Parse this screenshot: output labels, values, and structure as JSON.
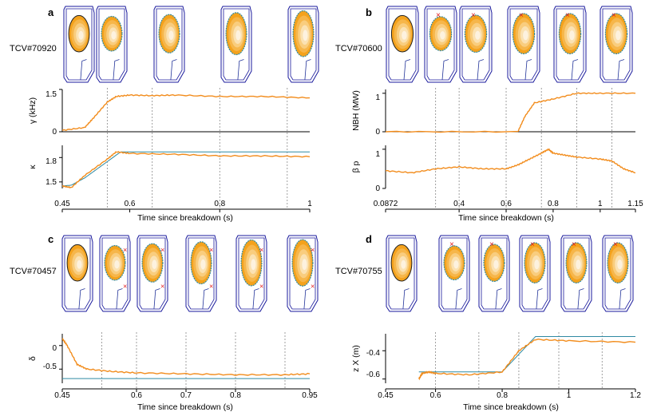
{
  "colors": {
    "orange": "#f28c1c",
    "teal": "#2f8aa3",
    "vessel": "#1a1a9c",
    "coil": "#223399",
    "dashed": "#888888",
    "xpoint": "#e0191b"
  },
  "panels": [
    {
      "letter": "a",
      "shot": "TCV#70920",
      "xlabel": "Time since breakdown (s)"
    },
    {
      "letter": "b",
      "shot": "TCV#70600",
      "xlabel": "Time since breakdown (s)"
    },
    {
      "letter": "c",
      "shot": "TCV#70457",
      "xlabel": "Time since breakdown (s)"
    },
    {
      "letter": "d",
      "shot": "TCV#70755",
      "xlabel": "Time since breakdown (s)"
    }
  ],
  "chart_data": [
    {
      "panel": "a",
      "type": "line",
      "x_ticks": [
        "0.45",
        "0.6",
        "0.8",
        "1"
      ],
      "xlim": [
        0.45,
        1.0
      ],
      "snapshot_times": [
        0.45,
        0.55,
        0.65,
        0.8,
        0.95
      ],
      "subplots": [
        {
          "ylabel": "γ (kHz)",
          "y_ticks": [
            "1.5",
            "0"
          ],
          "ylim": [
            0,
            1.5
          ],
          "series": [
            {
              "x": [
                0.45,
                0.5,
                0.52,
                0.55,
                0.57,
                0.6,
                0.65,
                0.7,
                0.8,
                0.9,
                1.0
              ],
              "y": [
                0.05,
                0.15,
                0.5,
                1.05,
                1.25,
                1.3,
                1.28,
                1.3,
                1.25,
                1.25,
                1.2
              ]
            }
          ]
        },
        {
          "ylabel": "κ",
          "y_ticks": [
            "1.8",
            "1.5"
          ],
          "ylim": [
            1.42,
            1.95
          ],
          "series": [
            {
              "x": [
                0.45,
                0.47,
                0.5,
                0.55,
                0.58,
                1.0
              ],
              "y": [
                1.45,
                1.46,
                1.55,
                1.75,
                1.87,
                1.87
              ]
            },
            {
              "x": [
                0.45,
                0.47,
                0.5,
                0.55,
                0.57,
                0.6,
                0.7,
                0.8,
                0.9,
                1.0
              ],
              "y": [
                1.45,
                1.43,
                1.58,
                1.78,
                1.87,
                1.85,
                1.84,
                1.82,
                1.82,
                1.81
              ]
            }
          ]
        }
      ]
    },
    {
      "panel": "b",
      "type": "line",
      "x_ticks": [
        "0.0872",
        "0.4",
        "0.6",
        "0.8",
        "1",
        "1.15"
      ],
      "xlim": [
        0.0872,
        1.15
      ],
      "snapshot_times": [
        0.0872,
        0.3,
        0.4,
        0.6,
        0.75,
        0.9,
        1.05
      ],
      "subplots": [
        {
          "ylabel": "NBH (MW)",
          "y_ticks": [
            "1",
            "0"
          ],
          "ylim": [
            0,
            1.1
          ],
          "series": [
            {
              "x": [
                0.0872,
                0.65,
                0.68,
                0.72,
                0.8,
                0.9,
                1.0,
                1.15
              ],
              "y": [
                0,
                0,
                0.4,
                0.75,
                0.85,
                1.0,
                1.0,
                1.0
              ]
            }
          ]
        },
        {
          "ylabel": "β p",
          "y_ticks": [
            "1",
            "0"
          ],
          "ylim": [
            0,
            1.1
          ],
          "series": [
            {
              "x": [
                0.0872,
                0.2,
                0.3,
                0.4,
                0.5,
                0.6,
                0.65,
                0.7,
                0.75,
                0.78,
                0.8,
                0.85,
                0.9,
                1.0,
                1.05,
                1.1,
                1.15
              ],
              "y": [
                0.45,
                0.4,
                0.5,
                0.55,
                0.5,
                0.5,
                0.6,
                0.75,
                0.9,
                1.0,
                0.9,
                0.85,
                0.8,
                0.75,
                0.7,
                0.5,
                0.4
              ]
            }
          ]
        }
      ]
    },
    {
      "panel": "c",
      "type": "line",
      "x_ticks": [
        "0.45",
        "0.6",
        "0.7",
        "0.8",
        "0.95"
      ],
      "xlim": [
        0.45,
        0.95
      ],
      "snapshot_times": [
        0.45,
        0.53,
        0.6,
        0.7,
        0.8,
        0.9
      ],
      "subplots": [
        {
          "ylabel": "δ",
          "y_ticks": [
            "0",
            "-0.5"
          ],
          "ylim": [
            -0.8,
            0.25
          ],
          "series": [
            {
              "x": [
                0.45,
                0.95
              ],
              "y": [
                -0.7,
                -0.7
              ]
            },
            {
              "x": [
                0.45,
                0.46,
                0.48,
                0.5,
                0.55,
                0.6,
                0.7,
                0.8,
                0.9,
                0.95
              ],
              "y": [
                0.15,
                0.0,
                -0.4,
                -0.5,
                -0.55,
                -0.58,
                -0.6,
                -0.62,
                -0.62,
                -0.6
              ]
            }
          ]
        }
      ]
    },
    {
      "panel": "d",
      "type": "line",
      "x_ticks": [
        "0.45",
        "0.6",
        "0.8",
        "1",
        "1.2"
      ],
      "xlim": [
        0.45,
        1.2
      ],
      "snapshot_times": [
        0.45,
        0.6,
        0.73,
        0.85,
        0.97,
        1.1
      ],
      "subplots": [
        {
          "ylabel": "z X (m)",
          "y_ticks": [
            "-0.4",
            "-0.6"
          ],
          "ylim": [
            -0.63,
            -0.28
          ],
          "series": [
            {
              "x": [
                0.55,
                0.6,
                0.8,
                0.9,
                1.0,
                1.2
              ],
              "y": [
                -0.55,
                -0.55,
                -0.55,
                -0.3,
                -0.3,
                -0.3
              ]
            },
            {
              "x": [
                0.55,
                0.56,
                0.58,
                0.6,
                0.7,
                0.8,
                0.85,
                0.9,
                1.0,
                1.2
              ],
              "y": [
                -0.6,
                -0.56,
                -0.55,
                -0.56,
                -0.57,
                -0.55,
                -0.4,
                -0.32,
                -0.33,
                -0.34
              ]
            }
          ]
        }
      ]
    }
  ]
}
